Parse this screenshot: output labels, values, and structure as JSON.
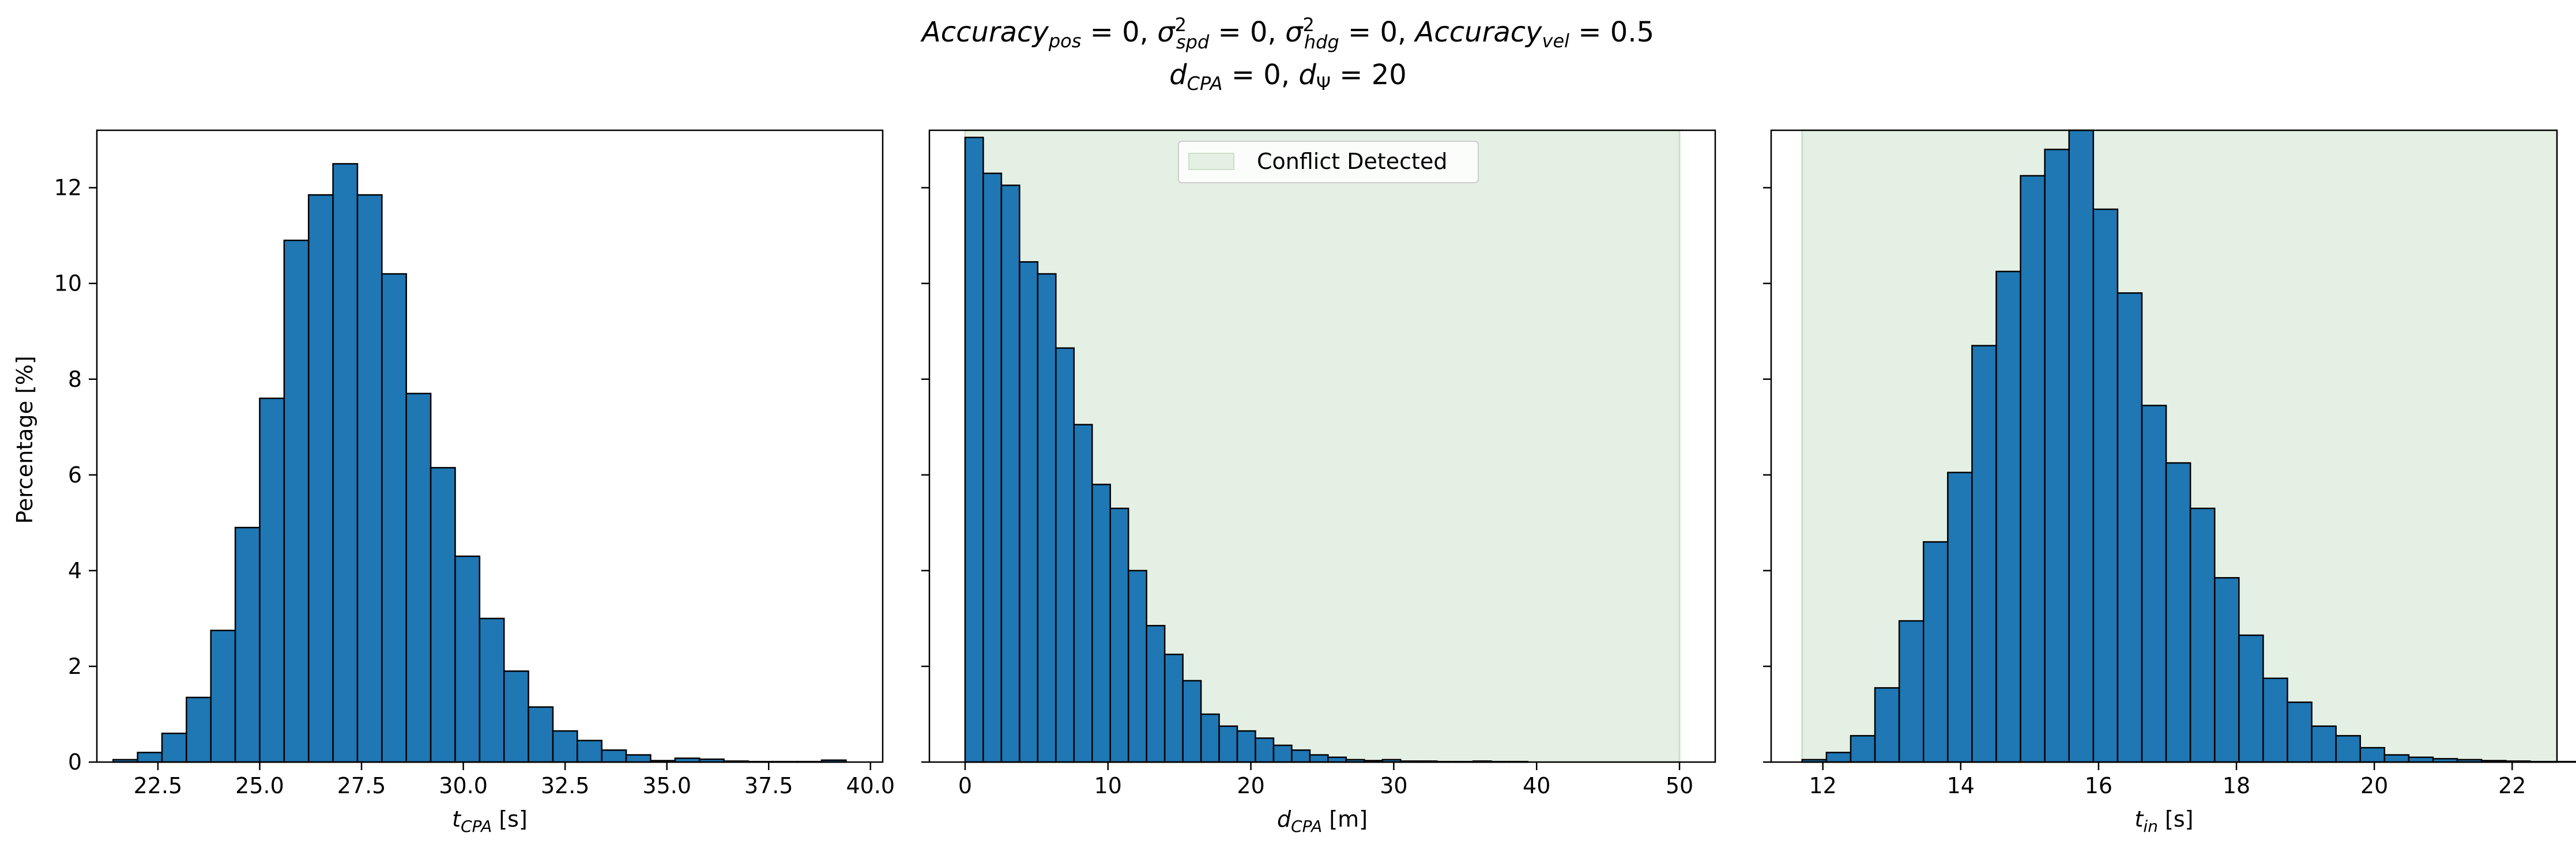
{
  "figure": {
    "title_line1": "Accuracy_pos = 0, σ²_spd = 0, σ²_hdg = 0, Accuracy_vel = 0.5",
    "title_line2": "d_CPA = 0, d_Ψ = 20",
    "colors": {
      "bar": "#1f77b4",
      "edge": "#000000",
      "shade": "#e5f0e4",
      "shade_edge": "#c9e0c8"
    }
  },
  "chart_data": [
    {
      "type": "bar",
      "title": "",
      "xlabel": "t_CPA [s]",
      "xlabel_main": "t",
      "xlabel_sub": "CPA",
      "xlabel_unit": " [s]",
      "ylabel": "Percentage [%]",
      "xlim": [
        21.0,
        40.3
      ],
      "ylim": [
        0,
        13.2
      ],
      "xticks": [
        22.5,
        25.0,
        27.5,
        30.0,
        32.5,
        35.0,
        37.5,
        40.0
      ],
      "xtick_labels": [
        "22.5",
        "25.0",
        "27.5",
        "30.0",
        "32.5",
        "35.0",
        "37.5",
        "40.0"
      ],
      "yticks": [
        0,
        2,
        4,
        6,
        8,
        10,
        12
      ],
      "ytick_labels": [
        "0",
        "2",
        "4",
        "6",
        "8",
        "10",
        "12"
      ],
      "bin_start": 21.4,
      "bin_width": 0.6,
      "values": [
        0.05,
        0.2,
        0.6,
        1.35,
        2.75,
        4.9,
        7.6,
        10.9,
        11.85,
        12.5,
        11.85,
        10.2,
        7.7,
        6.15,
        4.3,
        3.0,
        1.9,
        1.15,
        0.65,
        0.45,
        0.25,
        0.15,
        0.03,
        0.08,
        0.06,
        0.02,
        0.01,
        0.01,
        0.01,
        0.04
      ]
    },
    {
      "type": "bar",
      "title": "",
      "xlabel": "d_CPA [m]",
      "xlabel_main": "d",
      "xlabel_sub": "CPA",
      "xlabel_unit": " [m]",
      "xlim": [
        -2.5,
        52.5
      ],
      "ylim": [
        0,
        13.2
      ],
      "xticks": [
        0,
        10,
        20,
        30,
        40,
        50
      ],
      "xtick_labels": [
        "0",
        "10",
        "20",
        "30",
        "40",
        "50"
      ],
      "yticks": [
        0,
        2,
        4,
        6,
        8,
        10,
        12
      ],
      "shaded_region": [
        0,
        50
      ],
      "legend": [
        {
          "label": "Conflict Detected"
        }
      ],
      "bin_start": 0,
      "bin_width": 1.27,
      "values": [
        13.05,
        12.3,
        12.05,
        10.45,
        10.2,
        8.65,
        7.05,
        5.8,
        5.3,
        4.0,
        2.85,
        2.25,
        1.7,
        1.0,
        0.75,
        0.65,
        0.5,
        0.35,
        0.25,
        0.15,
        0.1,
        0.05,
        0.03,
        0.05,
        0.02,
        0.02,
        0.01,
        0.01,
        0.02,
        0.01,
        0.01
      ]
    },
    {
      "type": "bar",
      "title": "",
      "xlabel": "t_in [s]",
      "xlabel_main": "t",
      "xlabel_sub": "in",
      "xlabel_unit": " [s]",
      "xlim": [
        11.25,
        22.65
      ],
      "ylim": [
        0,
        13.2
      ],
      "xticks": [
        12,
        14,
        16,
        18,
        20,
        22
      ],
      "xtick_labels": [
        "12",
        "14",
        "16",
        "18",
        "20",
        "22"
      ],
      "yticks": [
        0,
        2,
        4,
        6,
        8,
        10,
        12
      ],
      "shaded_region": [
        11.7,
        50
      ],
      "bin_start": 11.7,
      "bin_width": 0.352,
      "values": [
        0.05,
        0.2,
        0.55,
        1.55,
        2.95,
        4.6,
        6.05,
        8.7,
        10.25,
        12.25,
        12.8,
        13.2,
        11.55,
        9.8,
        7.45,
        6.25,
        5.3,
        3.85,
        2.65,
        1.75,
        1.25,
        0.75,
        0.55,
        0.3,
        0.15,
        0.1,
        0.07,
        0.05,
        0.03,
        0.02,
        0.01,
        0.01
      ]
    }
  ]
}
